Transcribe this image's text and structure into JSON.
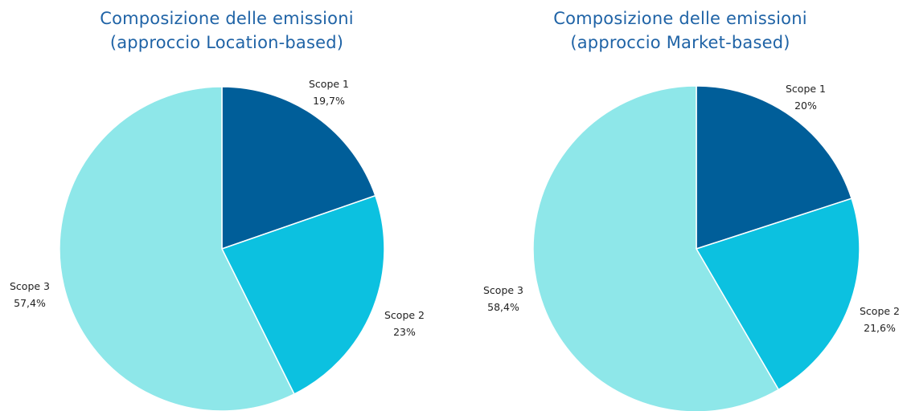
{
  "chart_data": [
    {
      "type": "pie",
      "title": [
        "Composizione delle emissioni",
        "(approccio Location-based)"
      ],
      "slices": [
        {
          "label": "Scope 1",
          "value": 19.7,
          "value_label": "19,7%",
          "color": "#005e99"
        },
        {
          "label": "Scope 2",
          "value": 23.0,
          "value_label": "23%",
          "color": "#0cc1e0"
        },
        {
          "label": "Scope 3",
          "value": 57.4,
          "value_label": "57,4%",
          "color": "#8ee7e9"
        }
      ],
      "start_angle": "12 o'clock",
      "direction": "clockwise",
      "legend": "none"
    },
    {
      "type": "pie",
      "title": [
        "Composizione delle emissioni",
        "(approccio Market-based)"
      ],
      "slices": [
        {
          "label": "Scope 1",
          "value": 20.0,
          "value_label": "20%",
          "color": "#005e99"
        },
        {
          "label": "Scope 2",
          "value": 21.6,
          "value_label": "21,6%",
          "color": "#0cc1e0"
        },
        {
          "label": "Scope 3",
          "value": 58.4,
          "value_label": "58,4%",
          "color": "#8ee7e9"
        }
      ],
      "start_angle": "12 o'clock",
      "direction": "clockwise",
      "legend": "none"
    }
  ]
}
